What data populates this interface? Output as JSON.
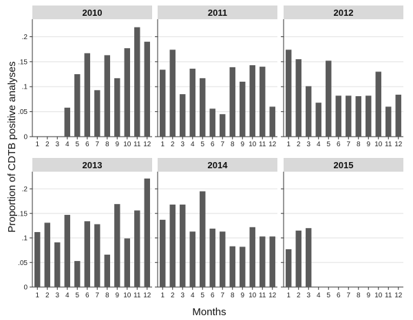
{
  "chart_data": {
    "type": "bar",
    "xlabel": "Months",
    "ylabel": "Proportion of CDTB positive analyses",
    "ylim": [
      0,
      0.235
    ],
    "yticks": [
      0,
      0.05,
      0.1,
      0.15,
      0.2
    ],
    "ytick_labels": [
      "0",
      ".05",
      ".1",
      ".15",
      ".2"
    ],
    "categories": [
      "1",
      "2",
      "3",
      "4",
      "5",
      "6",
      "7",
      "8",
      "9",
      "10",
      "11",
      "12"
    ],
    "grid": true,
    "bar_color": "#5a5a5a",
    "strip_color": "#d9d9d9",
    "grid_color": "#e6e6e6",
    "panels": [
      {
        "title": "2010",
        "values": [
          null,
          null,
          null,
          0.058,
          0.125,
          0.167,
          0.093,
          0.163,
          0.117,
          0.177,
          0.219,
          0.19
        ]
      },
      {
        "title": "2011",
        "values": [
          0.134,
          0.174,
          0.085,
          0.136,
          0.117,
          0.056,
          0.045,
          0.139,
          0.11,
          0.143,
          0.14,
          0.06
        ]
      },
      {
        "title": "2012",
        "values": [
          0.174,
          0.155,
          0.101,
          0.068,
          0.152,
          0.082,
          0.082,
          0.081,
          0.082,
          0.13,
          0.06,
          0.084
        ]
      },
      {
        "title": "2013",
        "values": [
          0.112,
          0.131,
          0.091,
          0.147,
          0.053,
          0.134,
          0.128,
          0.066,
          0.169,
          0.099,
          0.156,
          0.221
        ]
      },
      {
        "title": "2014",
        "values": [
          0.137,
          0.168,
          0.168,
          0.113,
          0.195,
          0.119,
          0.113,
          0.083,
          0.082,
          0.122,
          0.103,
          0.103
        ]
      },
      {
        "title": "2015",
        "values": [
          0.077,
          0.115,
          0.12,
          null,
          null,
          null,
          null,
          null,
          null,
          null,
          null,
          null
        ]
      }
    ]
  }
}
